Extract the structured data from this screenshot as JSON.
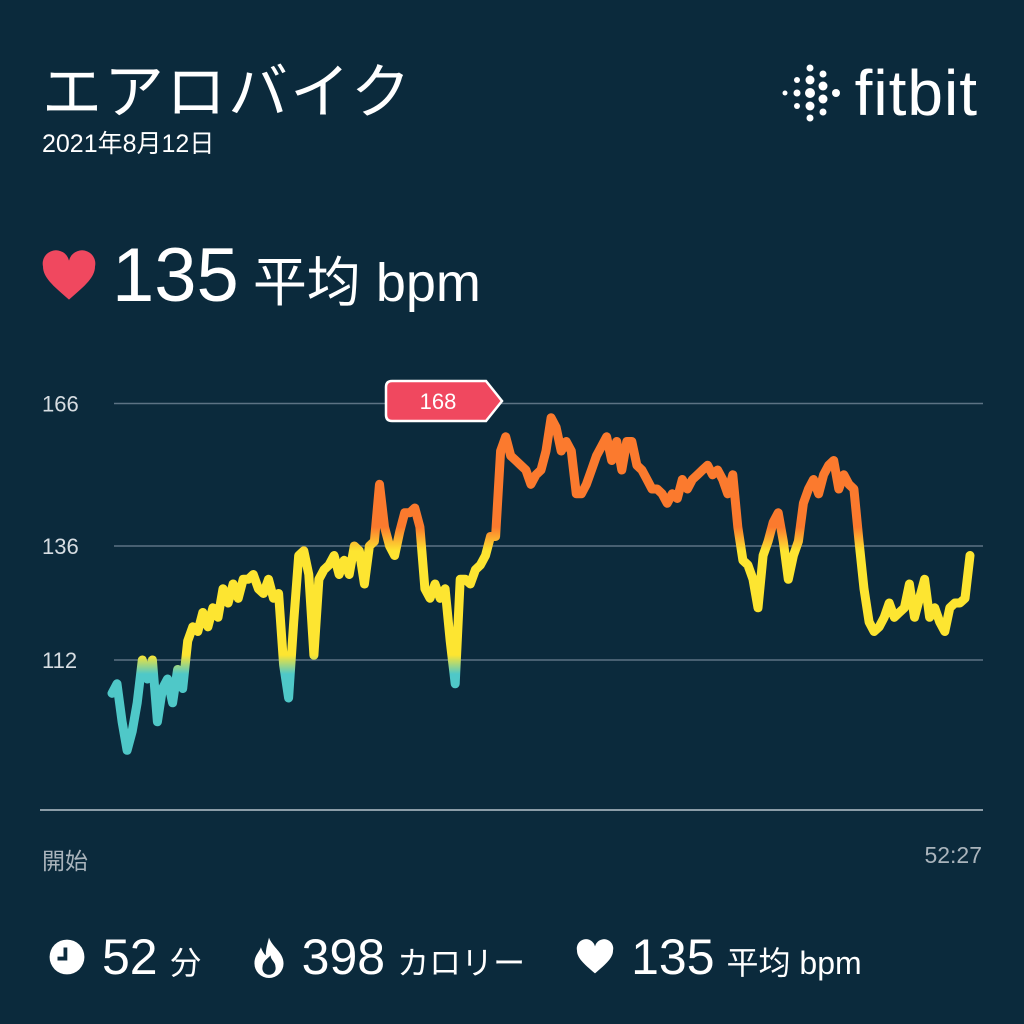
{
  "header": {
    "title": "エアロバイク",
    "date": "2021年8月12日",
    "brand": "fitbit"
  },
  "summary": {
    "heart_icon": "heart-icon",
    "value": "135",
    "unit": "平均 bpm"
  },
  "colors": {
    "background": "#0b2a3c",
    "heart": "#f0485f",
    "callout": "#f0485f",
    "zone_low": "#4fc8c8",
    "zone_mid": "#fde531",
    "zone_high": "#fb7a2e",
    "grid": "#5d7384"
  },
  "chart_data": {
    "type": "line",
    "title": "",
    "xlabel": "",
    "ylabel": "",
    "x_range_labels": {
      "start": "開始",
      "end": "52:27"
    },
    "x_range_minutes": [
      0,
      52.45
    ],
    "y_ticks": [
      112,
      136,
      166
    ],
    "y_tick_labels": [
      "112",
      "136",
      "166"
    ],
    "grid": true,
    "max_callout": {
      "label": "168",
      "value": 168
    },
    "zone_stops": [
      {
        "bpm": 109,
        "color": "#4fc8c8"
      },
      {
        "bpm": 113,
        "color": "#fde531"
      },
      {
        "bpm": 135,
        "color": "#fde531"
      },
      {
        "bpm": 140,
        "color": "#fb7a2e"
      }
    ],
    "sampling": "evenly spaced over x_range_minutes",
    "values": [
      105,
      107,
      99,
      93,
      97,
      103,
      112,
      108,
      112,
      99,
      106,
      108,
      103,
      110,
      106,
      116,
      119,
      118,
      122,
      119,
      123,
      121,
      127,
      124,
      128,
      125,
      129,
      129,
      130,
      127,
      126,
      129,
      125,
      126,
      111,
      104,
      120,
      134,
      135,
      130,
      113,
      129,
      131,
      132,
      134,
      130,
      133,
      130,
      136,
      135,
      128,
      136,
      137,
      149,
      140,
      136,
      134,
      139,
      143,
      143,
      144,
      140,
      127,
      125,
      128,
      125,
      127,
      116,
      107,
      129,
      129,
      128,
      131,
      132,
      134,
      138,
      138,
      156,
      159,
      155,
      154,
      153,
      152,
      149,
      151,
      152,
      156,
      163,
      161,
      156,
      158,
      156,
      147,
      147,
      149,
      152,
      155,
      157,
      159,
      154,
      158,
      152,
      158,
      158,
      153,
      152,
      150,
      148,
      148,
      147,
      145,
      147,
      146,
      150,
      148,
      150,
      151,
      152,
      153,
      151,
      152,
      150,
      147,
      151,
      140,
      133,
      132,
      129,
      123,
      134,
      137,
      141,
      143,
      137,
      129,
      134,
      137,
      145,
      148,
      150,
      147,
      151,
      153,
      154,
      148,
      151,
      149,
      148,
      137,
      127,
      120,
      118,
      119,
      121,
      124,
      121,
      122,
      123,
      128,
      121,
      125,
      129,
      121,
      123,
      120,
      118,
      123,
      124,
      124,
      125,
      134
    ]
  },
  "stats": [
    {
      "icon": "clock-icon",
      "value": "52",
      "unit": "分"
    },
    {
      "icon": "flame-icon",
      "value": "398",
      "unit": "カロリー"
    },
    {
      "icon": "heart-icon",
      "value": "135",
      "unit": "平均 bpm"
    }
  ]
}
